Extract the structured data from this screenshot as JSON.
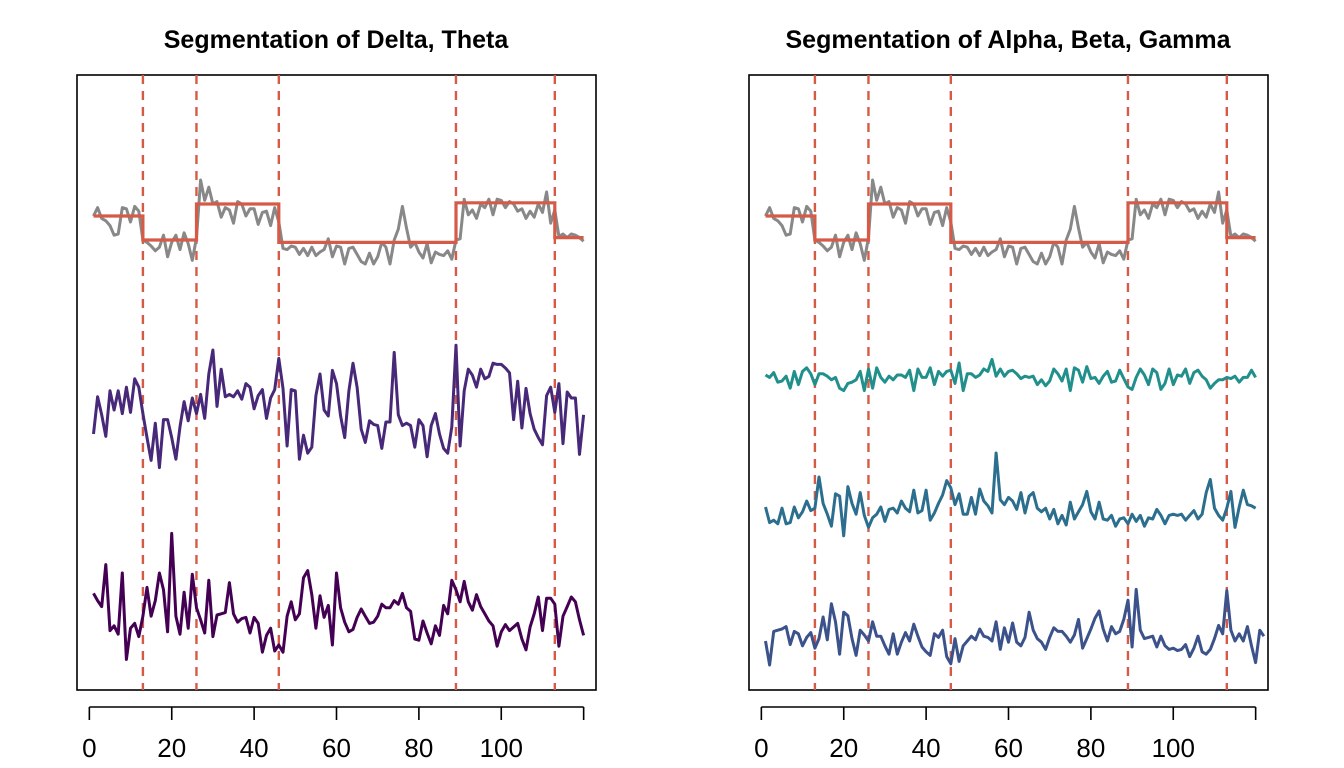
{
  "chart_data": [
    {
      "type": "line",
      "title": "Segmentation of Delta, Theta",
      "xlabel": "",
      "ylabel": "",
      "xlim": [
        -3,
        123
      ],
      "x_ticks": [
        0,
        20,
        40,
        60,
        80,
        100
      ],
      "x_tick_labels": [
        "0",
        "20",
        "40",
        "60",
        "80",
        "100"
      ],
      "y_axis_shown": false,
      "grid": false,
      "legend": "none",
      "change_points": [
        13,
        26,
        46,
        89,
        113
      ],
      "change_point_color": "#d55b48",
      "fit_color": "#d55b48",
      "series": [
        {
          "color": "#888888",
          "x_start": 1,
          "values": [
            1.0,
            1.7,
            0.8,
            0.6,
            0.2,
            -0.6,
            -0.5,
            1.7,
            1.6,
            0.5,
            1.8,
            1.4,
            -1.0,
            -1.2,
            -1.5,
            -1.9,
            -1.6,
            -0.6,
            -2.4,
            -1.2,
            -0.6,
            -1.8,
            -0.4,
            -1.3,
            -2.7,
            -0.8,
            4.0,
            2.3,
            3.4,
            2.0,
            2.2,
            0.9,
            1.7,
            1.5,
            0.4,
            2.2,
            2.0,
            1.0,
            1.6,
            1.6,
            0.3,
            1.3,
            1.4,
            0.2,
            1.7,
            0.5,
            -1.7,
            -1.8,
            -1.5,
            -1.6,
            -2.2,
            -1.7,
            -2.3,
            -1.6,
            -2.3,
            -2.0,
            -1.8,
            -0.9,
            -2.4,
            -1.5,
            -1.6,
            -3.0,
            -1.7,
            -1.6,
            -2.2,
            -2.8,
            -3.0,
            -2.1,
            -3.0,
            -2.4,
            -1.2,
            -1.6,
            -3.0,
            -1.0,
            -0.1,
            1.8,
            0.0,
            -1.6,
            -1.2,
            -2.0,
            -2.5,
            -1.3,
            -2.9,
            -2.0,
            -2.2,
            -2.3,
            -1.9,
            -2.6,
            -1.0,
            -0.9,
            2.4,
            1.1,
            1.5,
            0.8,
            2.0,
            1.7,
            2.4,
            1.1,
            2.4,
            2.3,
            1.7,
            2.2,
            2.0,
            1.4,
            1.6,
            0.8,
            1.4,
            0.9,
            2.0,
            1.3,
            3.0,
            0.4,
            1.5,
            -0.7,
            -0.5,
            -0.8,
            -0.5,
            -0.6,
            -0.8,
            -1.1
          ]
        },
        {
          "color": "#d55b48",
          "segments": [
            {
              "x0": 1,
              "x1": 13,
              "level": 1.0
            },
            {
              "x0": 13,
              "x1": 26,
              "level": -1.0
            },
            {
              "x0": 26,
              "x1": 46,
              "level": 2.0
            },
            {
              "x0": 46,
              "x1": 89,
              "level": -1.2
            },
            {
              "x0": 89,
              "x1": 113,
              "level": 2.1
            },
            {
              "x0": 113,
              "x1": 120,
              "level": -0.8
            }
          ]
        },
        {
          "color": "#482878",
          "x_start": 1,
          "values": [
            -2.0,
            1.1,
            -0.4,
            -2.2,
            1.6,
            0.0,
            1.6,
            -0.3,
            1.9,
            -0.2,
            2.6,
            1.9,
            -0.3,
            -2.3,
            -4.2,
            -1.1,
            -4.8,
            -0.8,
            -0.8,
            -2.3,
            -4.1,
            -1.4,
            0.7,
            -0.9,
            1.0,
            -0.3,
            1.3,
            -0.7,
            3.0,
            5.0,
            0.3,
            3.4,
            1.1,
            1.3,
            1.1,
            1.6,
            0.9,
            2.2,
            1.9,
            0.1,
            1.2,
            1.7,
            -0.7,
            1.0,
            1.7,
            4.3,
            1.8,
            -3.0,
            1.7,
            1.6,
            -4.1,
            -2.1,
            -3.6,
            -3.1,
            1.2,
            3.0,
            0.0,
            -0.5,
            3.3,
            2.2,
            -0.5,
            -2.3,
            1.6,
            3.9,
            1.9,
            -1.6,
            -2.7,
            -0.9,
            -1.2,
            -1.3,
            -3.2,
            -1.0,
            -1.0,
            4.8,
            -0.4,
            -1.3,
            -1.1,
            -1.3,
            -3.1,
            -0.8,
            -1.3,
            -3.9,
            -1.3,
            -0.3,
            -2.0,
            -3.2,
            -3.6,
            -1.4,
            5.4,
            -3.0,
            1.6,
            3.4,
            2.9,
            1.9,
            3.4,
            2.6,
            2.8,
            3.9,
            3.8,
            3.8,
            3.5,
            3.1,
            -0.8,
            2.4,
            -1.5,
            1.8,
            -0.3,
            -1.6,
            -2.3,
            -2.9,
            1.2,
            1.9,
            -0.2,
            2.2,
            -2.8,
            1.5,
            1.0,
            1.0,
            -3.7,
            -0.4
          ]
        },
        {
          "color": "#440154",
          "x_start": 1,
          "values": [
            0.3,
            -0.3,
            -0.8,
            2.7,
            -2.8,
            -2.4,
            -3.1,
            2.0,
            -5.2,
            -2.6,
            -2.2,
            -3.3,
            -1.6,
            0.8,
            -1.6,
            -0.3,
            2.0,
            0.6,
            -2.9,
            5.3,
            -1.6,
            -3.1,
            0.4,
            -2.6,
            1.9,
            -0.9,
            -1.9,
            -3.0,
            1.4,
            -3.3,
            -1.5,
            -1.4,
            -1.3,
            1.2,
            -1.4,
            -2.1,
            -1.8,
            -1.7,
            -3.0,
            -1.7,
            -2.2,
            -4.6,
            -3.2,
            -2.6,
            -4.5,
            -4.0,
            -4.6,
            -1.6,
            -0.4,
            -1.9,
            -1.4,
            1.6,
            2.2,
            0.2,
            -2.6,
            0.1,
            -1.7,
            -0.7,
            -4.0,
            2.0,
            -0.9,
            -2.1,
            -2.9,
            -2.7,
            -1.7,
            -1.0,
            -1.6,
            -2.2,
            -2.1,
            -1.6,
            -0.6,
            -0.9,
            -0.9,
            -0.3,
            -0.6,
            0.3,
            -0.9,
            -1.2,
            -3.5,
            -3.6,
            -2.0,
            -3.0,
            -3.9,
            -2.4,
            -3.2,
            -0.7,
            -1.4,
            1.4,
            0.6,
            -0.4,
            1.3,
            -0.4,
            -1.1,
            0.2,
            -0.8,
            -1.4,
            -2.0,
            -2.4,
            -4.1,
            -2.9,
            -2.3,
            -2.8,
            -2.5,
            -2.2,
            -3.5,
            -4.4,
            -2.5,
            -1.4,
            0.0,
            -2.8,
            -0.1,
            -0.1,
            -0.6,
            -4.1,
            -1.6,
            -0.8,
            0.0,
            -0.4,
            -1.9,
            -3.2
          ]
        }
      ]
    },
    {
      "type": "line",
      "title": "Segmentation of Alpha, Beta, Gamma",
      "xlabel": "",
      "ylabel": "",
      "xlim": [
        -3,
        123
      ],
      "x_ticks": [
        0,
        20,
        40,
        60,
        80,
        100
      ],
      "x_tick_labels": [
        "0",
        "20",
        "40",
        "60",
        "80",
        "100"
      ],
      "y_axis_shown": false,
      "grid": false,
      "legend": "none",
      "change_points": [
        13,
        26,
        46,
        89,
        113
      ],
      "change_point_color": "#d55b48",
      "fit_color": "#d55b48",
      "series": [
        {
          "color": "#888888",
          "x_start": 1,
          "values": [
            1.0,
            1.7,
            0.8,
            0.6,
            0.2,
            -0.6,
            -0.5,
            1.7,
            1.6,
            0.5,
            1.8,
            1.4,
            -1.0,
            -1.2,
            -1.5,
            -1.9,
            -1.6,
            -0.6,
            -2.4,
            -1.2,
            -0.6,
            -1.8,
            -0.4,
            -1.3,
            -2.7,
            -0.8,
            4.0,
            2.3,
            3.4,
            2.0,
            2.2,
            0.9,
            1.7,
            1.5,
            0.4,
            2.2,
            2.0,
            1.0,
            1.6,
            1.6,
            0.3,
            1.3,
            1.4,
            0.2,
            1.7,
            0.5,
            -1.7,
            -1.8,
            -1.5,
            -1.6,
            -2.2,
            -1.7,
            -2.3,
            -1.6,
            -2.3,
            -2.0,
            -1.8,
            -0.9,
            -2.4,
            -1.5,
            -1.6,
            -3.0,
            -1.7,
            -1.6,
            -2.2,
            -2.8,
            -3.0,
            -2.1,
            -3.0,
            -2.4,
            -1.2,
            -1.6,
            -3.0,
            -1.0,
            -0.1,
            1.8,
            0.0,
            -1.6,
            -1.2,
            -2.0,
            -2.5,
            -1.3,
            -2.9,
            -2.0,
            -2.2,
            -2.3,
            -1.9,
            -2.6,
            -1.0,
            -0.9,
            2.4,
            1.1,
            1.5,
            0.8,
            2.0,
            1.7,
            2.4,
            1.1,
            2.4,
            2.3,
            1.7,
            2.2,
            2.0,
            1.4,
            1.6,
            0.8,
            1.4,
            0.9,
            2.0,
            1.3,
            3.0,
            0.4,
            1.5,
            -0.7,
            -0.5,
            -0.8,
            -0.5,
            -0.6,
            -0.8,
            -1.1
          ]
        },
        {
          "color": "#d55b48",
          "segments": [
            {
              "x0": 1,
              "x1": 13,
              "level": 1.0
            },
            {
              "x0": 13,
              "x1": 26,
              "level": -1.0
            },
            {
              "x0": 26,
              "x1": 46,
              "level": 2.0
            },
            {
              "x0": 46,
              "x1": 89,
              "level": -1.2
            },
            {
              "x0": 89,
              "x1": 113,
              "level": 2.1
            },
            {
              "x0": 113,
              "x1": 120,
              "level": -0.8
            }
          ]
        },
        {
          "color": "#21908c",
          "x_start": 1,
          "values": [
            1.0,
            0.8,
            1.2,
            0.4,
            0.5,
            0.9,
            -0.1,
            1.3,
            0.2,
            1.3,
            1.6,
            1.1,
            0.2,
            1.1,
            1.1,
            0.9,
            0.6,
            0.8,
            -0.1,
            -0.3,
            0.3,
            0.4,
            0.6,
            1.3,
            -0.3,
            1.5,
            -0.1,
            1.6,
            0.8,
            0.4,
            0.9,
            0.6,
            1.0,
            1.0,
            0.8,
            1.4,
            -0.3,
            1.5,
            0.8,
            0.8,
            1.6,
            0.2,
            1.3,
            0.9,
            1.3,
            1.4,
            0.3,
            2.0,
            -0.3,
            1.1,
            1.1,
            0.8,
            1.0,
            1.5,
            1.3,
            2.3,
            0.9,
            1.5,
            0.9,
            1.3,
            1.4,
            1.1,
            0.7,
            0.9,
            0.8,
            0.9,
            0.2,
            0.6,
            0.1,
            0.5,
            1.5,
            1.1,
            0.5,
            1.5,
            -0.3,
            1.6,
            1.4,
            0.4,
            1.7,
            0.7,
            0.8,
            0.3,
            0.9,
            1.3,
            0.4,
            0.5,
            1.4,
            0.7,
            0.0,
            -0.2,
            0.8,
            1.5,
            1.0,
            0.2,
            1.5,
            1.2,
            -0.2,
            0.3,
            1.5,
            0.2,
            1.0,
            0.9,
            1.5,
            0.3,
            1.2,
            1.4,
            0.9,
            0.6,
            -0.1,
            0.3,
            0.6,
            0.6,
            0.8,
            0.7,
            0.9,
            0.4,
            0.8,
            0.8,
            1.4,
            0.8
          ]
        },
        {
          "color": "#2c6e8e",
          "x_start": 1,
          "values": [
            0.0,
            -1.3,
            -1.1,
            -1.4,
            -0.1,
            -1.4,
            -1.3,
            0.0,
            -0.9,
            -0.4,
            0.5,
            -0.3,
            -0.1,
            2.5,
            0.3,
            -0.6,
            -1.6,
            1.1,
            0.9,
            -2.4,
            1.7,
            0.3,
            -0.6,
            1.2,
            -0.7,
            -1.7,
            -0.9,
            -0.6,
            0.0,
            -1.2,
            -0.2,
            -0.1,
            -0.5,
            0.5,
            -0.1,
            -0.4,
            1.4,
            -0.5,
            -0.3,
            1.4,
            -1.1,
            -0.5,
            0.3,
            1.0,
            2.2,
            1.6,
            0.2,
            1.1,
            -0.6,
            -0.6,
            0.8,
            -0.6,
            1.5,
            0.5,
            0.1,
            -0.5,
            4.5,
            0.6,
            0.2,
            0.8,
            0.5,
            -0.2,
            1.2,
            -0.5,
            0.9,
            1.2,
            -0.1,
            -0.4,
            -0.1,
            -1.0,
            -0.2,
            -1.4,
            -0.7,
            -1.5,
            0.4,
            -1.0,
            -0.4,
            0.2,
            1.3,
            -0.4,
            -1.0,
            0.4,
            -1.0,
            -1.1,
            -0.7,
            -1.6,
            -1.0,
            -0.9,
            -1.4,
            -0.6,
            -1.2,
            -0.7,
            -1.6,
            -0.9,
            -1.0,
            -0.2,
            -0.7,
            -1.4,
            -0.7,
            -0.6,
            -0.7,
            -0.6,
            -1.1,
            -0.7,
            -0.3,
            -1.0,
            -0.6,
            1.2,
            2.3,
            -0.1,
            -0.7,
            -1.1,
            -0.1,
            1.3,
            -1.7,
            0.0,
            1.4,
            0.2,
            0.1,
            -0.1
          ]
        },
        {
          "color": "#3b528b",
          "x_start": 1,
          "values": [
            -1.5,
            -3.5,
            -0.7,
            -0.6,
            -0.5,
            -0.3,
            -1.8,
            -0.7,
            -0.9,
            -1.9,
            -1.2,
            -0.8,
            -2.1,
            -1.3,
            0.5,
            -1.4,
            1.6,
            0.1,
            -2.6,
            0.9,
            0.6,
            -1.3,
            -2.7,
            -0.6,
            -1.0,
            -1.5,
            0.1,
            -1.1,
            -1.1,
            -1.9,
            -2.6,
            -0.9,
            -2.6,
            -1.6,
            -0.8,
            -1.5,
            -0.1,
            -1.1,
            -2.0,
            -2.4,
            -2.7,
            -0.9,
            -1.2,
            -0.6,
            -2.8,
            -3.4,
            -1.3,
            -3.2,
            -1.9,
            -1.5,
            -1.1,
            -1.4,
            -0.5,
            -1.1,
            -1.2,
            -1.5,
            0.1,
            -2.2,
            -0.4,
            -1.6,
            0.0,
            -1.6,
            -1.9,
            -1.2,
            0.9,
            -0.6,
            -1.3,
            -1.6,
            -2.2,
            -1.2,
            -0.4,
            -0.7,
            -0.7,
            -1.1,
            -1.6,
            -1.0,
            0.3,
            -2.1,
            -1.3,
            -0.5,
            0.4,
            1.0,
            -0.5,
            -1.5,
            -0.3,
            -0.9,
            -0.7,
            0.3,
            1.9,
            -2.0,
            2.8,
            -0.6,
            -1.3,
            -1.2,
            -1.1,
            -2.0,
            -1.1,
            -1.9,
            -2.2,
            -2.1,
            -2.3,
            -2.2,
            -1.8,
            -2.8,
            -2.1,
            -1.1,
            -2.4,
            -2.6,
            -2.2,
            -1.3,
            -0.2,
            -0.9,
            2.7,
            -0.6,
            -1.5,
            -0.9,
            -1.5,
            -0.3,
            -1.9,
            -3.3,
            -0.6,
            -1.1
          ]
        }
      ]
    }
  ]
}
